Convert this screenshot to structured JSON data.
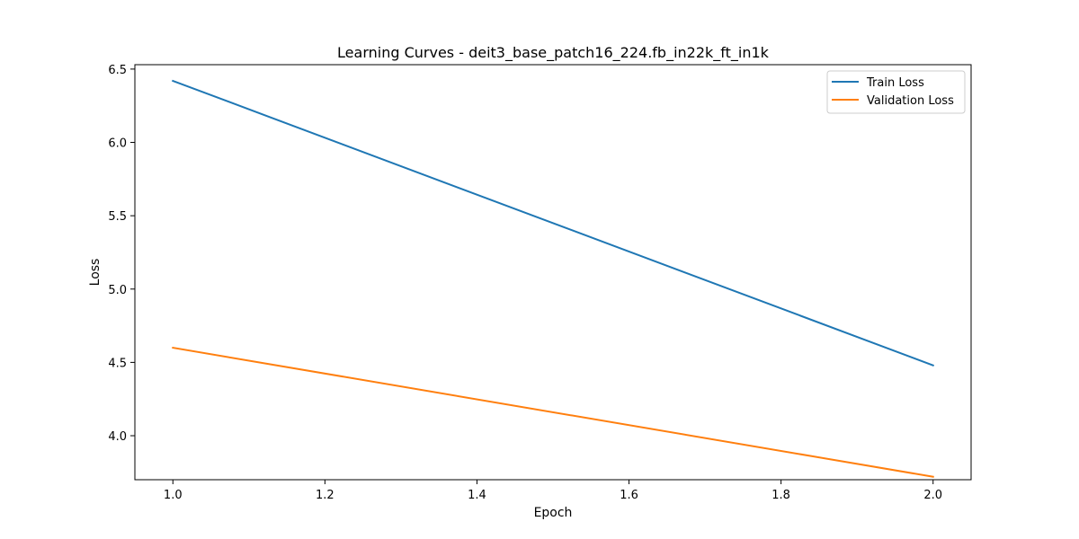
{
  "chart_data": {
    "type": "line",
    "title": "Learning Curves - deit3_base_patch16_224.fb_in22k_ft_in1k",
    "xlabel": "Epoch",
    "ylabel": "Loss",
    "xlim": [
      0.95,
      2.05
    ],
    "ylim": [
      3.7,
      6.53
    ],
    "xticks": [
      "1.0",
      "1.2",
      "1.4",
      "1.6",
      "1.8",
      "2.0"
    ],
    "yticks": [
      "4.0",
      "4.5",
      "5.0",
      "5.5",
      "6.0",
      "6.5"
    ],
    "grid": false,
    "legend_position": "top-right",
    "series": [
      {
        "name": "Train Loss",
        "color": "#1f77b4",
        "x": [
          1.0,
          2.0
        ],
        "y": [
          6.42,
          4.48
        ]
      },
      {
        "name": "Validation Loss",
        "color": "#ff7f0e",
        "x": [
          1.0,
          2.0
        ],
        "y": [
          4.6,
          3.72
        ]
      }
    ]
  }
}
